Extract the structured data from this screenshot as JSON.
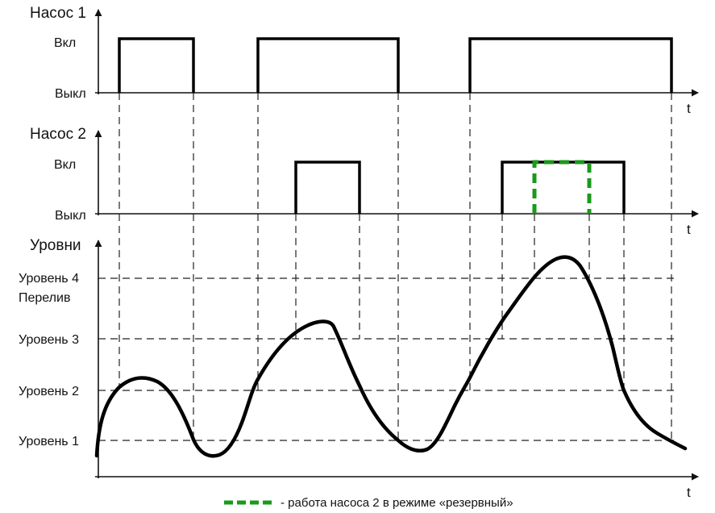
{
  "pump1": {
    "title": "Насос 1",
    "on_label": "Вкл",
    "off_label": "Выкл",
    "t_label": "t"
  },
  "pump2": {
    "title": "Насос 2",
    "on_label": "Вкл",
    "off_label": "Выкл",
    "t_label": "t"
  },
  "levels": {
    "title": "Уровни",
    "level4": "Уровень 4",
    "overflow": "Перелив",
    "level3": "Уровень 3",
    "level2": "Уровень 2",
    "level1": "Уровень 1",
    "t_label": "t"
  },
  "legend": {
    "text": "- работа насоса 2 в режиме «резервный»",
    "color": "#1a9a1a"
  },
  "colors": {
    "line": "#000000",
    "reserve": "#1a9a1a"
  }
}
